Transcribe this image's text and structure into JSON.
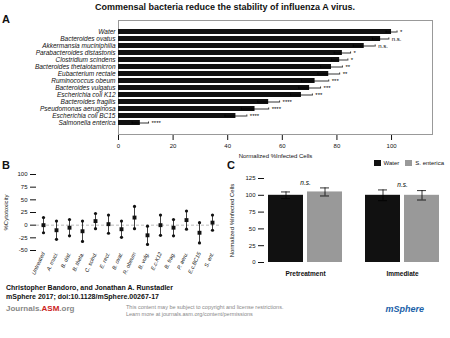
{
  "title": "Commensal bacteria reduce the stability of influenza A virus.",
  "annotations": [
    {
      "text": "Christopher Bandoro, and Jonathan A. Runstadler"
    },
    {
      "text": "mSphere 2017; doi:10.1128/mSphere.00267-17"
    },
    {
      "text": "Journals.",
      "color": "#888888"
    },
    {
      "text": "ASM",
      "color": "#cc2222"
    },
    {
      "text": ".org",
      "color": "#888888"
    },
    {
      "text": "This content may be subject to copyright and license restrictions.\nLearn more at journals.asm.org/content/permissions",
      "color": "#888888"
    },
    {
      "text": "mSphere",
      "color": "#1a5fa8"
    }
  ],
  "chart_data": [
    {
      "type": "bar",
      "title": "A",
      "orientation": "horizontal",
      "categories": [
        "Water",
        "Bacteroides ovatus",
        "Akkermansia muciniphilia",
        "Parabacteroides distastonis",
        "Clostridium scindens",
        "Bacteroides thetaiotamicron",
        "Eubacterium rectale",
        "Ruminococcus obeum",
        "Bacteroides vulgatus",
        "Escherichia coli K12",
        "Bacteroides fragilis",
        "Pseudomonas aeruginosa",
        "Escherichia coli BC15",
        "Salmonella enterica"
      ],
      "values": [
        100,
        96,
        90,
        82,
        81,
        78,
        77,
        72,
        70,
        67,
        55,
        50,
        43,
        8
      ],
      "errors": [
        2,
        3,
        4,
        3,
        3,
        4,
        4,
        5,
        4,
        4,
        4,
        5,
        4,
        3
      ],
      "significance": [
        "*",
        "n.s.",
        "n.s.",
        "*",
        "*",
        "**",
        "**",
        "***",
        "***",
        "***",
        "****",
        "****",
        "****",
        "****"
      ],
      "color": "#111111",
      "xlabel": "Normalized %Infected Cells",
      "xlim": [
        0,
        115
      ],
      "xticks": [
        0,
        20,
        40,
        60,
        80,
        100
      ]
    },
    {
      "type": "scatter",
      "title": "B",
      "categories": [
        "Untreated",
        "A. muci.",
        "B. dist.",
        "B. theta.",
        "C. scind.",
        "E. rect.",
        "B. ovat.",
        "R. obeum",
        "B. vulg.",
        "E.c.K12",
        "B. frag.",
        "P. aeru.",
        "E.c.BC15",
        "S. ent."
      ],
      "values": [
        0,
        -10,
        -5,
        -12,
        8,
        2,
        -8,
        15,
        -20,
        0,
        -5,
        10,
        -15,
        5
      ],
      "errors": [
        15,
        18,
        16,
        20,
        15,
        18,
        16,
        22,
        18,
        20,
        16,
        18,
        20,
        15
      ],
      "marker": "square",
      "color": "#111111",
      "ylabel": "%Cytotoxicity",
      "ylim": [
        -50,
        100
      ],
      "yticks": [
        -50,
        -25,
        0,
        25,
        50,
        75,
        100
      ],
      "reference_lines": [
        {
          "value": 0,
          "color": "#aaaaaa",
          "line_style": "dashed"
        }
      ]
    },
    {
      "type": "bar",
      "title": "C",
      "categories": [
        "Pretreatment",
        "Immediate"
      ],
      "series": [
        {
          "name": "Water",
          "color": "#111111",
          "values": [
            100,
            100
          ],
          "errors": [
            5,
            8
          ]
        },
        {
          "name": "S. enterica",
          "color": "#999999",
          "values": [
            105,
            100
          ],
          "errors": [
            6,
            7
          ]
        }
      ],
      "significance": [
        "n.s.",
        "n.s."
      ],
      "ylabel": "Normalized %Infected Cells",
      "ylim": [
        0,
        125
      ],
      "yticks": [
        0,
        25,
        50,
        75,
        100,
        125
      ],
      "legend": "upper right"
    }
  ]
}
